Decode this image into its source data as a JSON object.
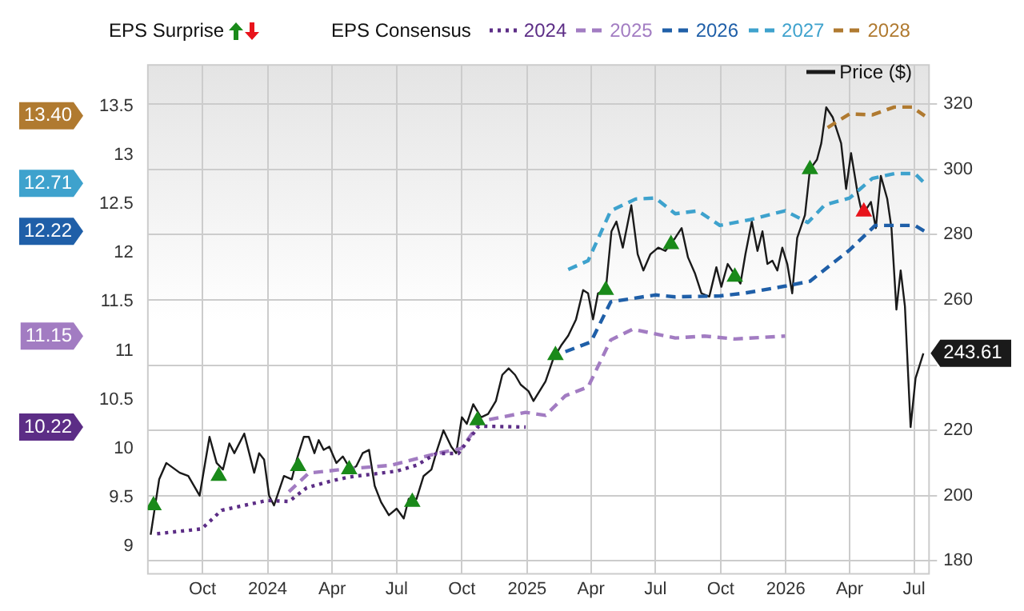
{
  "chart_data": {
    "type": "line",
    "legend": "top",
    "legend_title": "EPS Consensus",
    "grid": true,
    "marker": "none",
    "xlim": [
      "2023-07-16",
      "2026-07-22"
    ],
    "xticks": [
      {
        "value": "2023-10-01",
        "label": "Oct"
      },
      {
        "value": "2024-01-01",
        "label": "2024"
      },
      {
        "value": "2024-04-01",
        "label": "Apr"
      },
      {
        "value": "2024-07-01",
        "label": "Jul"
      },
      {
        "value": "2024-10-01",
        "label": "Oct"
      },
      {
        "value": "2025-01-01",
        "label": "2025"
      },
      {
        "value": "2025-04-01",
        "label": "Apr"
      },
      {
        "value": "2025-07-01",
        "label": "Jul"
      },
      {
        "value": "2025-10-01",
        "label": "Oct"
      },
      {
        "value": "2026-01-01",
        "label": "2026"
      },
      {
        "value": "2026-04-01",
        "label": "Apr"
      },
      {
        "value": "2026-07-01",
        "label": "Jul"
      }
    ],
    "ylim": [
      8.72,
      13.92
    ],
    "yticks": [
      9,
      9.5,
      10,
      10.5,
      11,
      11.5,
      12,
      12.5,
      13,
      13.5
    ],
    "y2lim": [
      176,
      332
    ],
    "y2ticks": [
      180,
      200,
      220,
      {
        "value": 240,
        "label": null
      },
      260,
      280,
      300,
      320
    ],
    "annotations": [
      "EPS Surprise",
      "13.40",
      "12.71",
      "12.22",
      "11.15",
      "10.22"
    ],
    "series": [
      {
        "type": "scatter",
        "marker": "triangle",
        "axis": "y2",
        "color": "#1a8a1a",
        "x": [
          "2023-07-24",
          "2023-10-24",
          "2024-02-13",
          "2024-04-25",
          "2024-07-23",
          "2024-10-23",
          "2025-02-10",
          "2025-04-22",
          "2025-07-23",
          "2025-10-21",
          "2026-02-04"
        ],
        "values": [
          197,
          206,
          209,
          208,
          198,
          223,
          243,
          263,
          277,
          267,
          300
        ]
      },
      {
        "type": "scatter",
        "marker": "triangle",
        "axis": "y2",
        "color": "#e8141c",
        "x": [
          "2026-04-21"
        ],
        "values": [
          287
        ]
      },
      {
        "name": "2024",
        "line_style": "dotted",
        "color": "#5c2d86",
        "x": [
          "2023-07-29",
          "2023-09-30",
          "2023-10-28",
          "2023-12-31",
          "2024-01-31",
          "2024-02-25",
          "2024-03-31",
          "2024-04-25",
          "2024-07-01",
          "2024-07-29",
          "2024-08-26",
          "2024-09-26",
          "2024-10-25",
          "2024-12-30"
        ],
        "values": [
          9.13,
          9.18,
          9.37,
          9.47,
          9.46,
          9.6,
          9.67,
          9.71,
          9.77,
          9.83,
          9.95,
          9.95,
          10.23,
          10.22
        ]
      },
      {
        "name": "2025",
        "line_style": "dashed",
        "color": "#a27cc2",
        "x": [
          "2024-01-31",
          "2024-02-28",
          "2024-04-18",
          "2024-06-23",
          "2024-08-26",
          "2024-09-30",
          "2024-10-28",
          "2024-12-30",
          "2025-01-27",
          "2025-02-24",
          "2025-03-28",
          "2025-04-29",
          "2025-05-30",
          "2025-07-29",
          "2025-09-08",
          "2025-10-21",
          "2025-12-31"
        ],
        "values": [
          9.56,
          9.75,
          9.79,
          9.83,
          9.95,
          10.0,
          10.28,
          10.37,
          10.34,
          10.54,
          10.63,
          11.11,
          11.22,
          11.13,
          11.15,
          11.12,
          11.15
        ]
      },
      {
        "name": "2026",
        "line_style": "dashed",
        "color": "#1f5fa8",
        "x": [
          "2025-02-24",
          "2025-04-01",
          "2025-04-29",
          "2025-07-01",
          "2025-07-29",
          "2025-09-30",
          "2025-11-05",
          "2025-12-31",
          "2026-02-04",
          "2026-04-01",
          "2026-05-07",
          "2026-07-02",
          "2026-07-16"
        ],
        "values": [
          10.99,
          11.09,
          11.5,
          11.57,
          11.55,
          11.56,
          11.59,
          11.66,
          11.71,
          12.03,
          12.28,
          12.28,
          12.22
        ]
      },
      {
        "name": "2027",
        "line_style": "dashed",
        "color": "#3ea2cd",
        "x": [
          "2025-02-28",
          "2025-03-28",
          "2025-04-29",
          "2025-06-03",
          "2025-07-01",
          "2025-07-29",
          "2025-08-30",
          "2025-09-30",
          "2025-11-12",
          "2025-12-31",
          "2026-02-01",
          "2026-02-25",
          "2026-04-01",
          "2026-05-03",
          "2026-06-03",
          "2026-07-02",
          "2026-07-16"
        ],
        "values": [
          11.83,
          11.92,
          12.43,
          12.55,
          12.56,
          12.4,
          12.43,
          12.28,
          12.34,
          12.43,
          12.31,
          12.49,
          12.56,
          12.76,
          12.81,
          12.81,
          12.71
        ]
      },
      {
        "name": "2028",
        "line_style": "dashed",
        "color": "#b07a30",
        "x": [
          "2026-03-01",
          "2026-04-01",
          "2026-05-03",
          "2026-06-03",
          "2026-06-28",
          "2026-07-16"
        ],
        "values": [
          13.28,
          13.42,
          13.41,
          13.49,
          13.49,
          13.4
        ]
      },
      {
        "name": "Price ($)",
        "axis": "y2",
        "line_style": "solid",
        "color": "#1a1a1a",
        "x": [
          "2023-07-20",
          "2023-08-01",
          "2023-08-11",
          "2023-08-30",
          "2023-09-11",
          "2023-09-27",
          "2023-10-11",
          "2023-10-21",
          "2023-10-30",
          "2023-11-08",
          "2023-11-15",
          "2023-11-29",
          "2023-12-13",
          "2023-12-20",
          "2023-12-27",
          "2024-01-03",
          "2024-01-10",
          "2024-01-24",
          "2024-02-04",
          "2024-02-11",
          "2024-02-21",
          "2024-02-28",
          "2024-03-07",
          "2024-03-13",
          "2024-03-20",
          "2024-03-28",
          "2024-04-07",
          "2024-04-16",
          "2024-04-27",
          "2024-05-05",
          "2024-05-14",
          "2024-05-23",
          "2024-05-31",
          "2024-06-09",
          "2024-06-20",
          "2024-07-01",
          "2024-07-11",
          "2024-07-18",
          "2024-07-29",
          "2024-08-08",
          "2024-08-19",
          "2024-08-27",
          "2024-09-05",
          "2024-09-16",
          "2024-09-23",
          "2024-10-01",
          "2024-10-08",
          "2024-10-17",
          "2024-10-28",
          "2024-11-07",
          "2024-11-18",
          "2024-11-27",
          "2024-12-06",
          "2024-12-15",
          "2024-12-23",
          "2025-01-03",
          "2025-01-10",
          "2025-01-27",
          "2025-02-07",
          "2025-02-18",
          "2025-02-28",
          "2025-03-11",
          "2025-03-21",
          "2025-03-28",
          "2025-04-04",
          "2025-04-11",
          "2025-04-22",
          "2025-04-30",
          "2025-05-07",
          "2025-05-16",
          "2025-05-28",
          "2025-06-06",
          "2025-06-14",
          "2025-06-24",
          "2025-07-05",
          "2025-07-15",
          "2025-07-29",
          "2025-08-07",
          "2025-08-16",
          "2025-08-26",
          "2025-09-04",
          "2025-09-15",
          "2025-09-25",
          "2025-10-02",
          "2025-10-11",
          "2025-10-20",
          "2025-10-29",
          "2025-11-05",
          "2025-11-14",
          "2025-11-22",
          "2025-11-29",
          "2025-12-06",
          "2025-12-13",
          "2025-12-20",
          "2025-12-27",
          "2026-01-03",
          "2026-01-10",
          "2026-01-17",
          "2026-01-28",
          "2026-02-04",
          "2026-02-14",
          "2026-02-20",
          "2026-02-27",
          "2026-03-08",
          "2026-03-20",
          "2026-03-27",
          "2026-04-03",
          "2026-04-12",
          "2026-04-19",
          "2026-05-01",
          "2026-05-08",
          "2026-05-15",
          "2026-05-24",
          "2026-05-30",
          "2026-06-06",
          "2026-06-12",
          "2026-06-18",
          "2026-06-26",
          "2026-07-03",
          "2026-07-14"
        ],
        "values": [
          188,
          205,
          210,
          207,
          206,
          200,
          218,
          210,
          208,
          216,
          213,
          219,
          207,
          213,
          211,
          200,
          197,
          206,
          205,
          211,
          218,
          218,
          213,
          217,
          214,
          215,
          210,
          212,
          208,
          209,
          213,
          214,
          203,
          198,
          194,
          196,
          193,
          199,
          199,
          206,
          208,
          214,
          220,
          215,
          213,
          224,
          222,
          228,
          224,
          225,
          229,
          237,
          239,
          237,
          234,
          232,
          229,
          235,
          242,
          246,
          249,
          254,
          263,
          262,
          254,
          262,
          263,
          281,
          284,
          276,
          289,
          274,
          269,
          274,
          276,
          275,
          279,
          282,
          273,
          268,
          262,
          261,
          270,
          264,
          271,
          268,
          265,
          274,
          284,
          275,
          281,
          271,
          272,
          269,
          276,
          271,
          262,
          279,
          286,
          300,
          303,
          308,
          319,
          316,
          308,
          294,
          305,
          293,
          286,
          290,
          282,
          298,
          291,
          282,
          257,
          269,
          258,
          221,
          236,
          243.61
        ],
        "value_labels": [
          null,
          null,
          null,
          null,
          null,
          null,
          null,
          null,
          null,
          null,
          null,
          null,
          null,
          null,
          null,
          null,
          null,
          null,
          null,
          null,
          null,
          null,
          null,
          null,
          null,
          null,
          null,
          null,
          null,
          null,
          null,
          null,
          null,
          null,
          null,
          null,
          null,
          null,
          null,
          null,
          null,
          null,
          null,
          null,
          null,
          null,
          null,
          null,
          null,
          null,
          null,
          null,
          null,
          null,
          null,
          null,
          null,
          null,
          null,
          null,
          null,
          null,
          null,
          null,
          null,
          null,
          null,
          null,
          null,
          null,
          null,
          null,
          null,
          null,
          null,
          null,
          null,
          null,
          null,
          null,
          null,
          null,
          null,
          null,
          null,
          null,
          null,
          null,
          null,
          null,
          null,
          null,
          null,
          null,
          null,
          null,
          null,
          null,
          null,
          null,
          null,
          null,
          null,
          null,
          null,
          null,
          null,
          null,
          null,
          null,
          null,
          null,
          null,
          null,
          null,
          null,
          null,
          null,
          null,
          "243.61"
        ]
      }
    ]
  }
}
